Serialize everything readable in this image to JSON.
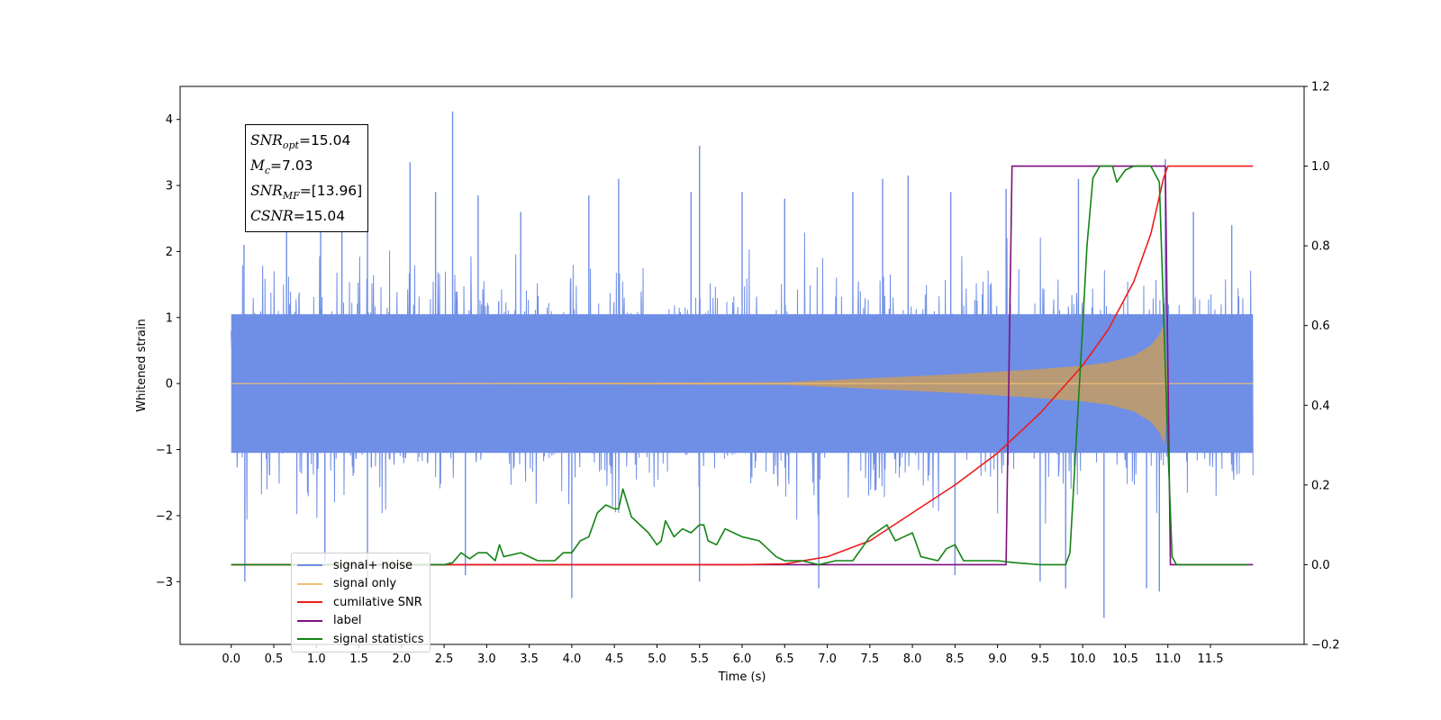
{
  "chart_data": {
    "type": "line",
    "xlabel": "Time (s)",
    "ylabel": "Whitened strain",
    "xlim": [
      -0.6,
      12.6
    ],
    "ylim": [
      -3.95,
      4.5
    ],
    "y2lim": [
      -0.2,
      1.2
    ],
    "x_ticks": [
      0.0,
      0.5,
      1.0,
      1.5,
      2.0,
      2.5,
      3.0,
      3.5,
      4.0,
      4.5,
      5.0,
      5.5,
      6.0,
      6.5,
      7.0,
      7.5,
      8.0,
      8.5,
      9.0,
      9.5,
      10.0,
      10.5,
      11.0,
      11.5
    ],
    "x_tick_labels": [
      "0.0",
      "0.5",
      "1.0",
      "1.5",
      "2.0",
      "2.5",
      "3.0",
      "3.5",
      "4.0",
      "4.5",
      "5.0",
      "5.5",
      "6.0",
      "6.5",
      "7.0",
      "7.5",
      "8.0",
      "8.5",
      "9.0",
      "9.5",
      "10.0",
      "10.5",
      "11.0",
      "11.5"
    ],
    "y_ticks": [
      -3,
      -2,
      -1,
      0,
      1,
      2,
      3,
      4
    ],
    "y_tick_labels": [
      "−3",
      "−2",
      "−1",
      "0",
      "1",
      "2",
      "3",
      "4"
    ],
    "y2_ticks": [
      -0.2,
      0.0,
      0.2,
      0.4,
      0.6,
      0.8,
      1.0,
      1.2
    ],
    "y2_tick_labels": [
      "−0.2",
      "0.0",
      "0.2",
      "0.4",
      "0.6",
      "0.8",
      "1.0",
      "1.2"
    ],
    "legend_position": "lower-left",
    "grid": false,
    "series": [
      {
        "name": "signal+ noise",
        "color": "#6f8ee6",
        "axis": "left",
        "description_band": {
          "x_start": 0.0,
          "x_end": 12.0,
          "typical_amplitude": 1.3
        },
        "peaks": [
          {
            "x": 0.15,
            "y": 2.1
          },
          {
            "x": 0.16,
            "y": -3.0
          },
          {
            "x": 0.65,
            "y": 2.5
          },
          {
            "x": 1.05,
            "y": 2.55
          },
          {
            "x": 1.1,
            "y": -2.7
          },
          {
            "x": 1.3,
            "y": 2.9
          },
          {
            "x": 1.6,
            "y": 2.5
          },
          {
            "x": 1.6,
            "y": -3.1
          },
          {
            "x": 2.1,
            "y": 3.35
          },
          {
            "x": 2.4,
            "y": 2.9
          },
          {
            "x": 2.6,
            "y": 4.12
          },
          {
            "x": 2.75,
            "y": -2.9
          },
          {
            "x": 2.9,
            "y": 2.85
          },
          {
            "x": 3.4,
            "y": 2.6
          },
          {
            "x": 4.0,
            "y": -3.25
          },
          {
            "x": 4.2,
            "y": 2.85
          },
          {
            "x": 4.55,
            "y": 3.1
          },
          {
            "x": 5.4,
            "y": 2.9
          },
          {
            "x": 5.5,
            "y": 3.6
          },
          {
            "x": 5.5,
            "y": -3.0
          },
          {
            "x": 6.0,
            "y": 2.9
          },
          {
            "x": 6.5,
            "y": 2.8
          },
          {
            "x": 6.9,
            "y": -3.1
          },
          {
            "x": 7.3,
            "y": 2.9
          },
          {
            "x": 7.65,
            "y": 3.1
          },
          {
            "x": 7.95,
            "y": 3.15
          },
          {
            "x": 8.45,
            "y": 2.9
          },
          {
            "x": 8.5,
            "y": -2.9
          },
          {
            "x": 9.1,
            "y": 2.95
          },
          {
            "x": 9.5,
            "y": -3.0
          },
          {
            "x": 9.8,
            "y": -3.1
          },
          {
            "x": 9.95,
            "y": 3.1
          },
          {
            "x": 10.25,
            "y": -3.55
          },
          {
            "x": 10.75,
            "y": -3.1
          },
          {
            "x": 10.9,
            "y": -3.15
          },
          {
            "x": 10.97,
            "y": 3.4
          },
          {
            "x": 11.3,
            "y": 2.6
          },
          {
            "x": 11.75,
            "y": 2.4
          }
        ]
      },
      {
        "name": "signal only",
        "color": "#f2bf73",
        "axis": "left",
        "envelope": [
          {
            "x": 0.0,
            "y": 0.0
          },
          {
            "x": 6.5,
            "y": 0.02
          },
          {
            "x": 7.0,
            "y": 0.05
          },
          {
            "x": 7.5,
            "y": 0.08
          },
          {
            "x": 8.0,
            "y": 0.11
          },
          {
            "x": 8.5,
            "y": 0.14
          },
          {
            "x": 9.0,
            "y": 0.18
          },
          {
            "x": 9.5,
            "y": 0.22
          },
          {
            "x": 10.0,
            "y": 0.27
          },
          {
            "x": 10.3,
            "y": 0.32
          },
          {
            "x": 10.6,
            "y": 0.42
          },
          {
            "x": 10.8,
            "y": 0.58
          },
          {
            "x": 10.9,
            "y": 0.74
          },
          {
            "x": 10.96,
            "y": 0.92
          },
          {
            "x": 11.0,
            "y": 0.0
          },
          {
            "x": 12.0,
            "y": 0.0
          }
        ]
      },
      {
        "name": "cumilative SNR",
        "color": "#ee1c1c",
        "axis": "right",
        "points": [
          {
            "x": 0.0,
            "y": 0.0
          },
          {
            "x": 6.0,
            "y": 0.0
          },
          {
            "x": 6.5,
            "y": 0.002
          },
          {
            "x": 7.0,
            "y": 0.02
          },
          {
            "x": 7.5,
            "y": 0.06
          },
          {
            "x": 8.0,
            "y": 0.13
          },
          {
            "x": 8.5,
            "y": 0.2
          },
          {
            "x": 9.0,
            "y": 0.28
          },
          {
            "x": 9.5,
            "y": 0.38
          },
          {
            "x": 10.0,
            "y": 0.5
          },
          {
            "x": 10.3,
            "y": 0.59
          },
          {
            "x": 10.6,
            "y": 0.71
          },
          {
            "x": 10.8,
            "y": 0.83
          },
          {
            "x": 10.95,
            "y": 0.97
          },
          {
            "x": 11.0,
            "y": 1.0
          },
          {
            "x": 12.0,
            "y": 1.0
          }
        ]
      },
      {
        "name": "label",
        "color": "#7f0f7f",
        "axis": "right",
        "points": [
          {
            "x": 0.0,
            "y": 0.0
          },
          {
            "x": 9.1,
            "y": 0.0
          },
          {
            "x": 9.17,
            "y": 1.0
          },
          {
            "x": 10.97,
            "y": 1.0
          },
          {
            "x": 11.03,
            "y": 0.0
          },
          {
            "x": 12.0,
            "y": 0.0
          }
        ]
      },
      {
        "name": "signal statistics",
        "color": "#148414",
        "axis": "right",
        "points": [
          {
            "x": 0.0,
            "y": 0.0
          },
          {
            "x": 2.5,
            "y": 0.0
          },
          {
            "x": 2.6,
            "y": 0.005
          },
          {
            "x": 2.7,
            "y": 0.03
          },
          {
            "x": 2.8,
            "y": 0.015
          },
          {
            "x": 2.9,
            "y": 0.03
          },
          {
            "x": 3.0,
            "y": 0.03
          },
          {
            "x": 3.1,
            "y": 0.01
          },
          {
            "x": 3.15,
            "y": 0.05
          },
          {
            "x": 3.2,
            "y": 0.02
          },
          {
            "x": 3.4,
            "y": 0.03
          },
          {
            "x": 3.6,
            "y": 0.01
          },
          {
            "x": 3.8,
            "y": 0.01
          },
          {
            "x": 3.9,
            "y": 0.03
          },
          {
            "x": 4.0,
            "y": 0.03
          },
          {
            "x": 4.1,
            "y": 0.06
          },
          {
            "x": 4.2,
            "y": 0.07
          },
          {
            "x": 4.3,
            "y": 0.13
          },
          {
            "x": 4.4,
            "y": 0.15
          },
          {
            "x": 4.5,
            "y": 0.14
          },
          {
            "x": 4.55,
            "y": 0.14
          },
          {
            "x": 4.6,
            "y": 0.19
          },
          {
            "x": 4.7,
            "y": 0.12
          },
          {
            "x": 4.8,
            "y": 0.1
          },
          {
            "x": 4.9,
            "y": 0.08
          },
          {
            "x": 5.0,
            "y": 0.05
          },
          {
            "x": 5.05,
            "y": 0.06
          },
          {
            "x": 5.1,
            "y": 0.11
          },
          {
            "x": 5.2,
            "y": 0.07
          },
          {
            "x": 5.3,
            "y": 0.09
          },
          {
            "x": 5.4,
            "y": 0.08
          },
          {
            "x": 5.5,
            "y": 0.1
          },
          {
            "x": 5.55,
            "y": 0.1
          },
          {
            "x": 5.6,
            "y": 0.06
          },
          {
            "x": 5.7,
            "y": 0.05
          },
          {
            "x": 5.8,
            "y": 0.09
          },
          {
            "x": 5.9,
            "y": 0.08
          },
          {
            "x": 6.0,
            "y": 0.07
          },
          {
            "x": 6.2,
            "y": 0.06
          },
          {
            "x": 6.3,
            "y": 0.04
          },
          {
            "x": 6.4,
            "y": 0.02
          },
          {
            "x": 6.5,
            "y": 0.01
          },
          {
            "x": 6.7,
            "y": 0.01
          },
          {
            "x": 6.9,
            "y": 0.0
          },
          {
            "x": 7.1,
            "y": 0.01
          },
          {
            "x": 7.3,
            "y": 0.01
          },
          {
            "x": 7.5,
            "y": 0.07
          },
          {
            "x": 7.7,
            "y": 0.1
          },
          {
            "x": 7.8,
            "y": 0.06
          },
          {
            "x": 7.9,
            "y": 0.07
          },
          {
            "x": 8.0,
            "y": 0.08
          },
          {
            "x": 8.1,
            "y": 0.02
          },
          {
            "x": 8.3,
            "y": 0.01
          },
          {
            "x": 8.4,
            "y": 0.04
          },
          {
            "x": 8.5,
            "y": 0.05
          },
          {
            "x": 8.6,
            "y": 0.01
          },
          {
            "x": 8.8,
            "y": 0.01
          },
          {
            "x": 9.0,
            "y": 0.01
          },
          {
            "x": 9.2,
            "y": 0.005
          },
          {
            "x": 9.5,
            "y": 0.0
          },
          {
            "x": 9.7,
            "y": 0.0
          },
          {
            "x": 9.8,
            "y": 0.0
          },
          {
            "x": 9.85,
            "y": 0.03
          },
          {
            "x": 10.0,
            "y": 0.6
          },
          {
            "x": 10.05,
            "y": 0.8
          },
          {
            "x": 10.12,
            "y": 0.97
          },
          {
            "x": 10.2,
            "y": 1.0
          },
          {
            "x": 10.35,
            "y": 1.0
          },
          {
            "x": 10.4,
            "y": 0.96
          },
          {
            "x": 10.5,
            "y": 0.99
          },
          {
            "x": 10.6,
            "y": 1.0
          },
          {
            "x": 10.8,
            "y": 1.0
          },
          {
            "x": 10.9,
            "y": 0.96
          },
          {
            "x": 11.0,
            "y": 0.3
          },
          {
            "x": 11.05,
            "y": 0.02
          },
          {
            "x": 11.1,
            "y": 0.0
          },
          {
            "x": 11.95,
            "y": 0.0
          }
        ]
      }
    ]
  },
  "info_box": {
    "snr_opt_value": "=15.04",
    "mc_value": "=7.03",
    "snr_mf_value": "=[13.96]",
    "csnr_value": "=15.04"
  },
  "legend": {
    "items": [
      {
        "label": "signal+ noise",
        "color": "#6f8ee6"
      },
      {
        "label": "signal only",
        "color": "#f2bf73"
      },
      {
        "label": "cumilative SNR",
        "color": "#ee1c1c"
      },
      {
        "label": "label",
        "color": "#7f0f7f"
      },
      {
        "label": "signal statistics",
        "color": "#148414"
      }
    ]
  }
}
